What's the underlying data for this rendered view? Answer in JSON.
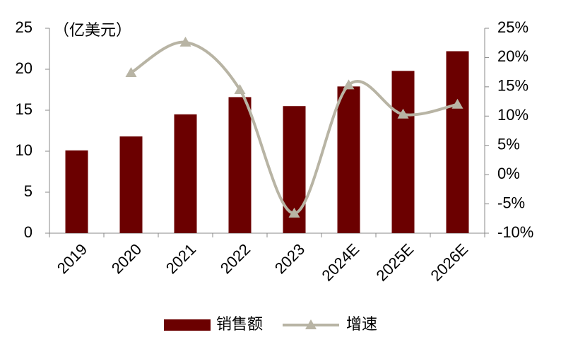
{
  "chart_data": {
    "type": "bar",
    "y_label": "（亿美元）",
    "categories": [
      "2019",
      "2020",
      "2021",
      "2022",
      "2023",
      "2024E",
      "2025E",
      "2026E"
    ],
    "series": [
      {
        "name": "销售额",
        "type": "bar",
        "color": "#6b0000",
        "values": [
          10.1,
          11.8,
          14.5,
          16.6,
          15.5,
          17.9,
          19.8,
          22.2
        ]
      },
      {
        "name": "增速",
        "type": "line",
        "axis": "y2",
        "color": "#b8b4a4",
        "values": [
          null,
          17.4,
          22.6,
          14.5,
          -6.6,
          15.3,
          10.3,
          12.0
        ]
      }
    ],
    "ylim": [
      0,
      25
    ],
    "yticks": [
      0,
      5,
      10,
      15,
      20,
      25
    ],
    "y2lim": [
      -10,
      25
    ],
    "y2ticks": [
      {
        "value": -10,
        "label": "-10%"
      },
      {
        "value": -5,
        "label": "-5%"
      },
      {
        "value": 0,
        "label": "0%"
      },
      {
        "value": 5,
        "label": "5%"
      },
      {
        "value": 10,
        "label": "10%"
      },
      {
        "value": 15,
        "label": "15%"
      },
      {
        "value": 20,
        "label": "20%"
      },
      {
        "value": 25,
        "label": "25%"
      }
    ],
    "legend": "bottom"
  }
}
